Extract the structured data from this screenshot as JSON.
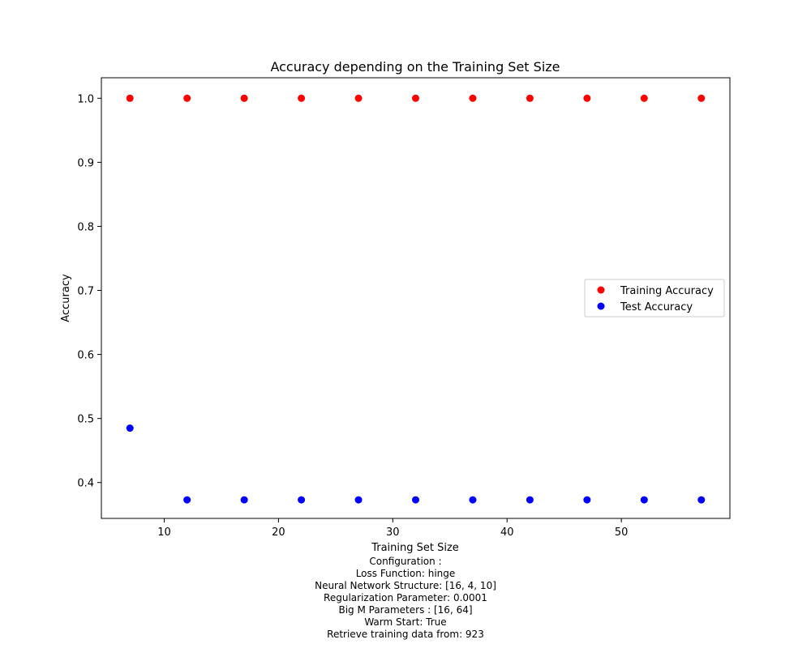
{
  "chart_data": {
    "type": "scatter",
    "title": "Accuracy depending on the Training Set Size",
    "xlabel": "Training Set Size",
    "ylabel": "Accuracy",
    "xlim": [
      4.5,
      59.5
    ],
    "ylim": [
      0.344,
      1.032
    ],
    "xticks": [
      10,
      20,
      30,
      40,
      50
    ],
    "yticks": [
      0.4,
      0.5,
      0.6,
      0.7,
      0.8,
      0.9,
      1.0
    ],
    "ytick_labels": [
      "0.4",
      "0.5",
      "0.6",
      "0.7",
      "0.8",
      "0.9",
      "1.0"
    ],
    "grid": false,
    "legend_position": "center-right",
    "x": [
      7,
      12,
      17,
      22,
      27,
      32,
      37,
      42,
      47,
      52,
      57
    ],
    "series": [
      {
        "name": "Training Accuracy",
        "color": "#ff0000",
        "values": [
          1.0,
          1.0,
          1.0,
          1.0,
          1.0,
          1.0,
          1.0,
          1.0,
          1.0,
          1.0,
          1.0
        ]
      },
      {
        "name": "Test Accuracy",
        "color": "#0000ff",
        "values": [
          0.485,
          0.373,
          0.373,
          0.373,
          0.373,
          0.373,
          0.373,
          0.373,
          0.373,
          0.373,
          0.373
        ]
      }
    ]
  },
  "caption": {
    "lines": [
      "Configuration :",
      "Loss Function: hinge",
      "Neural Network Structure: [16, 4, 10]",
      "Regularization Parameter: 0.0001",
      "Big M Parameters : [16, 64]",
      "Warm Start: True",
      "Retrieve training data from: 923"
    ]
  }
}
